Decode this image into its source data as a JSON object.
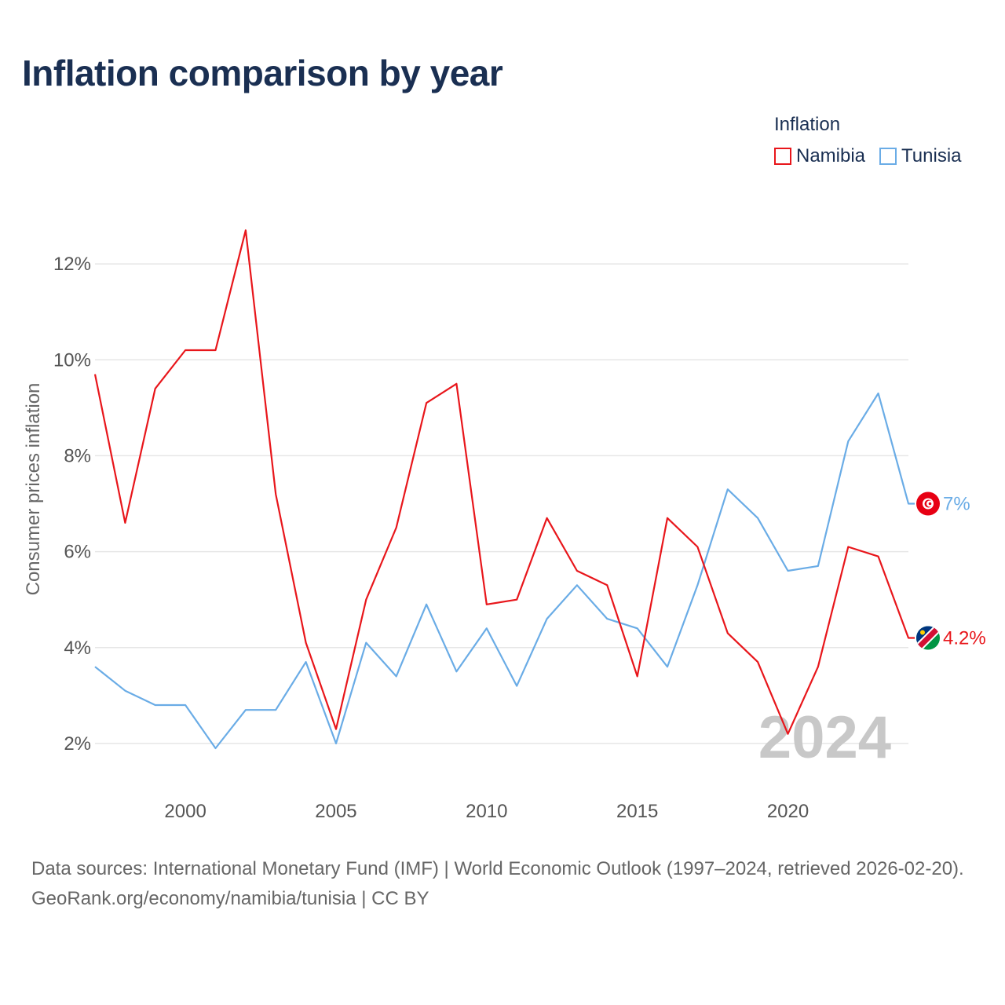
{
  "title": "Inflation comparison by year",
  "legend": {
    "title": "Inflation",
    "items": [
      {
        "name": "Namibia",
        "color": "#e8161b"
      },
      {
        "name": "Tunisia",
        "color": "#6aace6"
      }
    ]
  },
  "chart_data": {
    "type": "line",
    "ylabel": "Consumer prices inflation",
    "xlabel": "",
    "xlim": [
      1997,
      2024
    ],
    "ylim": [
      1,
      13
    ],
    "yticks": [
      2,
      4,
      6,
      8,
      10,
      12
    ],
    "ytick_labels": [
      "2%",
      "4%",
      "6%",
      "8%",
      "10%",
      "12%"
    ],
    "xticks": [
      2000,
      2005,
      2010,
      2015,
      2020
    ],
    "xtick_labels": [
      "2000",
      "2005",
      "2010",
      "2015",
      "2020"
    ],
    "grid": true,
    "year_watermark": "2024",
    "x": [
      1997,
      1998,
      1999,
      2000,
      2001,
      2002,
      2003,
      2004,
      2005,
      2006,
      2007,
      2008,
      2009,
      2010,
      2011,
      2012,
      2013,
      2014,
      2015,
      2016,
      2017,
      2018,
      2019,
      2020,
      2021,
      2022,
      2023,
      2024
    ],
    "series": [
      {
        "name": "Namibia",
        "color": "#e8161b",
        "end_label": "4.2%",
        "flag": "namibia-flag",
        "values": [
          9.7,
          6.6,
          9.4,
          10.2,
          10.2,
          12.7,
          7.2,
          4.1,
          2.3,
          5.0,
          6.5,
          9.1,
          9.5,
          4.9,
          5.0,
          6.7,
          5.6,
          5.3,
          3.4,
          6.7,
          6.1,
          4.3,
          3.7,
          2.2,
          3.6,
          6.1,
          5.9,
          4.2
        ]
      },
      {
        "name": "Tunisia",
        "color": "#6aace6",
        "end_label": "7%",
        "flag": "tunisia-flag",
        "values": [
          3.6,
          3.1,
          2.8,
          2.8,
          1.9,
          2.7,
          2.7,
          3.7,
          2.0,
          4.1,
          3.4,
          4.9,
          3.5,
          4.4,
          3.2,
          4.6,
          5.3,
          4.6,
          4.4,
          3.6,
          5.3,
          7.3,
          6.7,
          5.6,
          5.7,
          8.3,
          9.3,
          7.0
        ]
      }
    ]
  },
  "footer": {
    "sources": "Data sources: International Monetary Fund (IMF) | World Economic Outlook (1997–2024, retrieved 2026-02-20).",
    "credit": "GeoRank.org/economy/namibia/tunisia | CC BY"
  }
}
